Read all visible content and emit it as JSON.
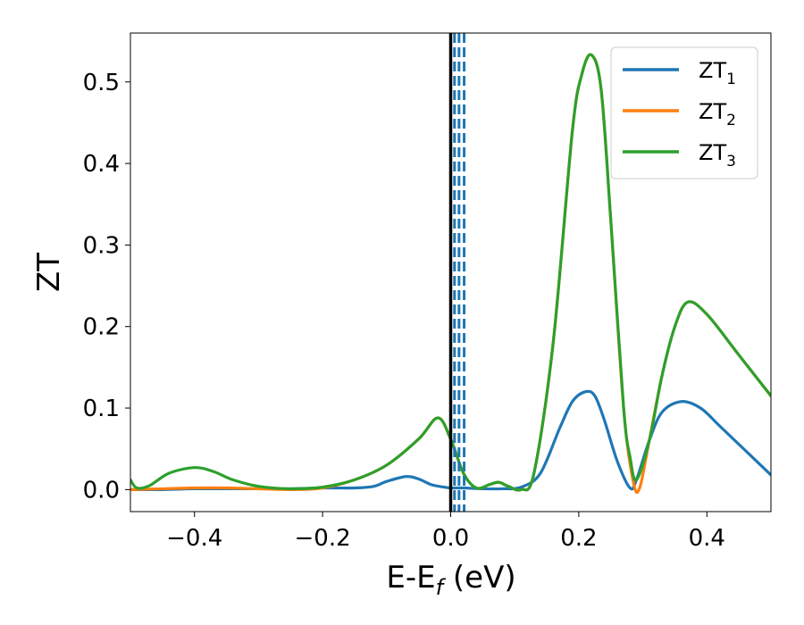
{
  "chart_data": {
    "type": "line",
    "xlabel": {
      "base": "E-E",
      "sub": "f",
      "rest": " (eV)"
    },
    "ylabel": "ZT",
    "xlim": [
      -0.5,
      0.5
    ],
    "ylim": [
      -0.027,
      0.56
    ],
    "xticks": [
      {
        "v": -0.4,
        "label": "−0.4"
      },
      {
        "v": -0.2,
        "label": "−0.2"
      },
      {
        "v": 0.0,
        "label": "0.0"
      },
      {
        "v": 0.2,
        "label": "0.2"
      },
      {
        "v": 0.4,
        "label": "0.4"
      }
    ],
    "yticks": [
      {
        "v": 0.0,
        "label": "0.0"
      },
      {
        "v": 0.1,
        "label": "0.1"
      },
      {
        "v": 0.2,
        "label": "0.2"
      },
      {
        "v": 0.3,
        "label": "0.3"
      },
      {
        "v": 0.4,
        "label": "0.4"
      },
      {
        "v": 0.5,
        "label": "0.5"
      }
    ],
    "grid": false,
    "legend_position": "top-right",
    "vlines": [
      {
        "x": 0.0,
        "color": "#000000",
        "style": "solid"
      },
      {
        "x": 0.006,
        "color": "#1f77b4",
        "style": "dashed"
      },
      {
        "x": 0.013,
        "color": "#1f77b4",
        "style": "dashed"
      },
      {
        "x": 0.021,
        "color": "#1f77b4",
        "style": "dashed"
      }
    ],
    "series": [
      {
        "name": "ZT",
        "sub": "1",
        "color": "#1f77b4",
        "x": [
          -0.5,
          -0.45,
          -0.4,
          -0.35,
          -0.3,
          -0.25,
          -0.2,
          -0.15,
          -0.12,
          -0.1,
          -0.07,
          -0.05,
          -0.03,
          -0.01,
          0.0,
          0.02,
          0.05,
          0.08,
          0.11,
          0.14,
          0.17,
          0.19,
          0.21,
          0.225,
          0.24,
          0.26,
          0.28,
          0.29,
          0.31,
          0.33,
          0.36,
          0.39,
          0.42,
          0.46,
          0.5
        ],
        "y": [
          0.0,
          0.0,
          0.001,
          0.001,
          0.001,
          0.001,
          0.002,
          0.002,
          0.004,
          0.01,
          0.016,
          0.013,
          0.006,
          0.003,
          0.002,
          0.002,
          0.001,
          0.001,
          0.003,
          0.02,
          0.075,
          0.108,
          0.12,
          0.115,
          0.085,
          0.035,
          0.002,
          0.012,
          0.06,
          0.095,
          0.108,
          0.1,
          0.078,
          0.048,
          0.018
        ]
      },
      {
        "name": "ZT",
        "sub": "2",
        "color": "#ff7f0e",
        "x": [
          -0.5,
          -0.45,
          -0.4,
          -0.35,
          -0.3,
          -0.25,
          -0.2,
          -0.15,
          -0.1,
          -0.05,
          -0.02,
          0.0,
          0.02,
          0.04,
          0.06,
          0.075,
          0.09,
          0.11,
          0.13,
          0.16,
          0.19,
          0.205,
          0.22,
          0.235,
          0.25,
          0.27,
          0.285,
          0.295,
          0.31,
          0.33,
          0.35,
          0.37,
          0.4,
          0.45,
          0.5
        ],
        "y": [
          0.0,
          0.001,
          0.002,
          0.002,
          0.001,
          0.0,
          0.002,
          0.012,
          0.03,
          0.062,
          0.088,
          0.062,
          0.02,
          0.002,
          0.006,
          0.009,
          0.004,
          0.0,
          0.02,
          0.18,
          0.44,
          0.51,
          0.533,
          0.49,
          0.33,
          0.1,
          0.01,
          0.002,
          0.06,
          0.14,
          0.2,
          0.23,
          0.215,
          0.165,
          0.115
        ]
      },
      {
        "name": "ZT",
        "sub": "3",
        "color": "#2ca02c",
        "x": [
          -0.5,
          -0.49,
          -0.47,
          -0.44,
          -0.4,
          -0.37,
          -0.34,
          -0.3,
          -0.25,
          -0.2,
          -0.15,
          -0.1,
          -0.05,
          -0.02,
          0.0,
          0.02,
          0.04,
          0.06,
          0.075,
          0.09,
          0.11,
          0.13,
          0.16,
          0.19,
          0.205,
          0.22,
          0.235,
          0.25,
          0.27,
          0.28,
          0.29,
          0.31,
          0.33,
          0.35,
          0.37,
          0.4,
          0.45,
          0.5
        ],
        "y": [
          0.012,
          0.002,
          0.005,
          0.02,
          0.027,
          0.022,
          0.012,
          0.004,
          0.001,
          0.003,
          0.012,
          0.03,
          0.062,
          0.088,
          0.062,
          0.02,
          0.002,
          0.006,
          0.009,
          0.004,
          0.0,
          0.02,
          0.18,
          0.44,
          0.51,
          0.533,
          0.49,
          0.33,
          0.1,
          0.04,
          0.012,
          0.06,
          0.14,
          0.2,
          0.23,
          0.215,
          0.165,
          0.115
        ]
      }
    ]
  }
}
